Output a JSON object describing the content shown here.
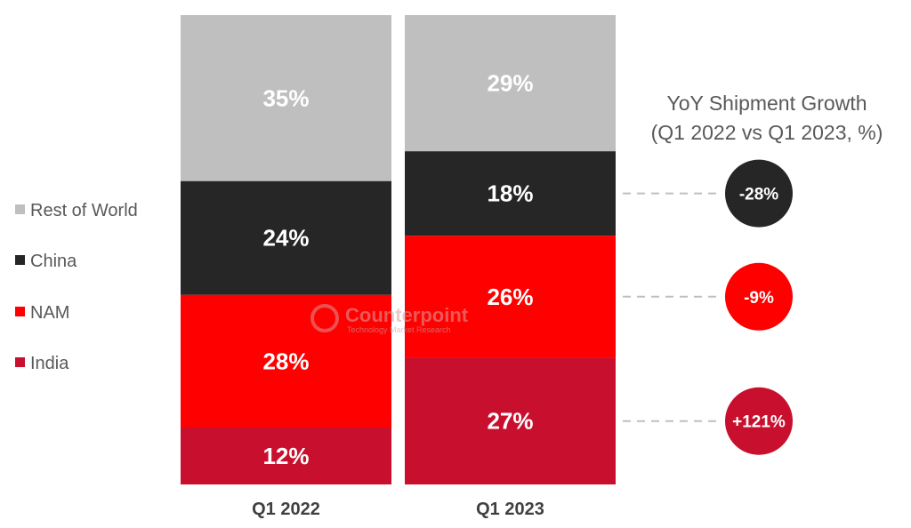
{
  "chart_data": {
    "type": "bar",
    "stacked": true,
    "normalized_percent": true,
    "categories": [
      "Q1 2022",
      "Q1 2023"
    ],
    "series": [
      {
        "name": "India",
        "values": [
          12,
          27
        ],
        "color": "#c8102e"
      },
      {
        "name": "NAM",
        "values": [
          28,
          26
        ],
        "color": "#ff0000"
      },
      {
        "name": "China",
        "values": [
          24,
          18
        ],
        "color": "#262626"
      },
      {
        "name": "Rest of World",
        "values": [
          35,
          29
        ],
        "color": "#bfbfbf"
      }
    ],
    "value_labels": {
      "Q1 2022": [
        "12%",
        "28%",
        "24%",
        "35%"
      ],
      "Q1 2023": [
        "27%",
        "26%",
        "18%",
        "29%"
      ]
    },
    "legend_order": [
      "Rest of World",
      "China",
      "NAM",
      "India"
    ],
    "legend_placement": "left",
    "ylim": [
      0,
      100
    ],
    "grid": false,
    "growth": {
      "title_line1": "YoY Shipment Growth",
      "title_line2": "(Q1 2022 vs Q1 2023, %)",
      "items": [
        {
          "series": "China",
          "label": "-28%",
          "color": "#262626"
        },
        {
          "series": "NAM",
          "label": "-9%",
          "color": "#ff0000"
        },
        {
          "series": "India",
          "label": "+121%",
          "color": "#c8102e"
        }
      ]
    },
    "watermark": {
      "name": "Counterpoint",
      "subtitle": "Technology Market Research"
    }
  }
}
